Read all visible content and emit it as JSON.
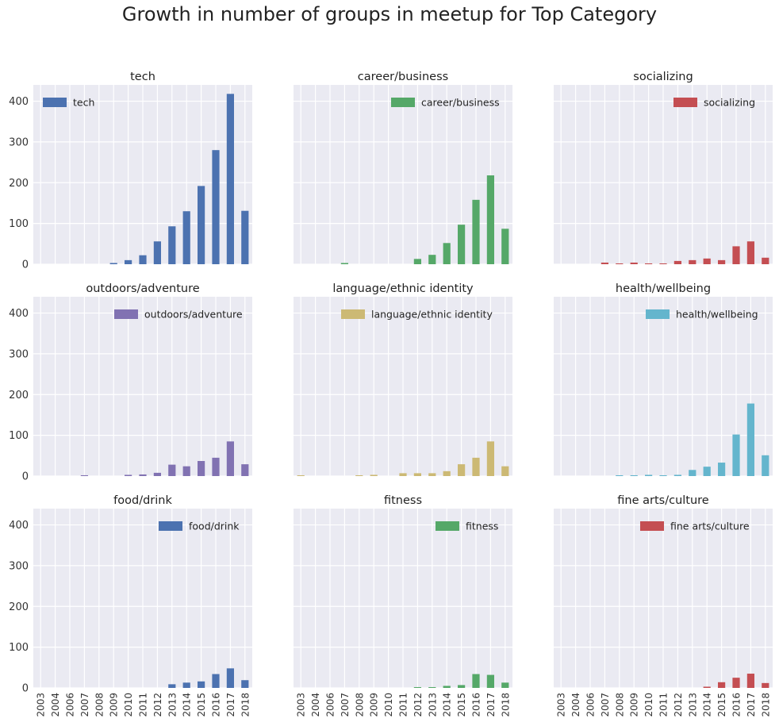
{
  "figure": {
    "title": "Growth in number of groups in meetup for Top Category"
  },
  "colors": {
    "panel_background": "#EAEAF2",
    "grid": "#FFFFFF",
    "tick_label": "#333333"
  },
  "chart_data": [
    {
      "type": "bar",
      "title": "tech",
      "color": "#4C72B0",
      "legend": "top-left",
      "categories": [
        "2003",
        "2004",
        "2006",
        "2007",
        "2008",
        "2009",
        "2010",
        "2011",
        "2012",
        "2013",
        "2014",
        "2015",
        "2016",
        "2017",
        "2018"
      ],
      "series": [
        {
          "name": "tech",
          "values": [
            0,
            0,
            0,
            0,
            0,
            3,
            10,
            22,
            56,
            93,
            130,
            192,
            280,
            418,
            131
          ]
        }
      ],
      "yticks": [
        0,
        100,
        200,
        300,
        400
      ],
      "ylim": [
        0,
        440
      ],
      "grid": true
    },
    {
      "type": "bar",
      "title": "career/business",
      "color": "#55A868",
      "legend": "top-right",
      "categories": [
        "2003",
        "2004",
        "2006",
        "2007",
        "2008",
        "2009",
        "2010",
        "2011",
        "2012",
        "2013",
        "2014",
        "2015",
        "2016",
        "2017",
        "2018"
      ],
      "series": [
        {
          "name": "career/business",
          "values": [
            0,
            0,
            0,
            3,
            0,
            0,
            0,
            0,
            13,
            23,
            52,
            97,
            158,
            218,
            87
          ]
        }
      ],
      "yticks": [
        0,
        100,
        200,
        300,
        400
      ],
      "ylim": [
        0,
        440
      ],
      "grid": true
    },
    {
      "type": "bar",
      "title": "socializing",
      "color": "#C44E52",
      "legend": "top-right",
      "categories": [
        "2003",
        "2004",
        "2006",
        "2007",
        "2008",
        "2009",
        "2010",
        "2011",
        "2012",
        "2013",
        "2014",
        "2015",
        "2016",
        "2017",
        "2018"
      ],
      "series": [
        {
          "name": "socializing",
          "values": [
            0,
            0,
            0,
            4,
            2,
            4,
            2,
            2,
            8,
            10,
            14,
            10,
            44,
            56,
            16
          ]
        }
      ],
      "yticks": [
        0,
        100,
        200,
        300,
        400
      ],
      "ylim": [
        0,
        440
      ],
      "grid": true
    },
    {
      "type": "bar",
      "title": "outdoors/adventure",
      "color": "#8172B2",
      "legend": "top-right",
      "categories": [
        "2003",
        "2004",
        "2006",
        "2007",
        "2008",
        "2009",
        "2010",
        "2011",
        "2012",
        "2013",
        "2014",
        "2015",
        "2016",
        "2017",
        "2018"
      ],
      "series": [
        {
          "name": "outdoors/adventure",
          "values": [
            0,
            0,
            0,
            2,
            0,
            0,
            3,
            4,
            8,
            28,
            24,
            37,
            45,
            85,
            29
          ]
        }
      ],
      "yticks": [
        0,
        100,
        200,
        300,
        400
      ],
      "ylim": [
        0,
        440
      ],
      "grid": true
    },
    {
      "type": "bar",
      "title": "language/ethnic identity",
      "color": "#CCB974",
      "legend": "top-right",
      "categories": [
        "2003",
        "2004",
        "2006",
        "2007",
        "2008",
        "2009",
        "2010",
        "2011",
        "2012",
        "2013",
        "2014",
        "2015",
        "2016",
        "2017",
        "2018"
      ],
      "series": [
        {
          "name": "language/ethnic identity",
          "values": [
            2,
            0,
            0,
            0,
            2,
            3,
            0,
            7,
            7,
            7,
            12,
            29,
            45,
            85,
            24
          ]
        }
      ],
      "yticks": [
        0,
        100,
        200,
        300,
        400
      ],
      "ylim": [
        0,
        440
      ],
      "grid": true
    },
    {
      "type": "bar",
      "title": "health/wellbeing",
      "color": "#64B5CD",
      "legend": "top-right",
      "categories": [
        "2003",
        "2004",
        "2006",
        "2007",
        "2008",
        "2009",
        "2010",
        "2011",
        "2012",
        "2013",
        "2014",
        "2015",
        "2016",
        "2017",
        "2018"
      ],
      "series": [
        {
          "name": "health/wellbeing",
          "values": [
            0,
            0,
            0,
            0,
            2,
            2,
            3,
            2,
            3,
            15,
            23,
            33,
            102,
            178,
            51
          ]
        }
      ],
      "yticks": [
        0,
        100,
        200,
        300,
        400
      ],
      "ylim": [
        0,
        440
      ],
      "grid": true
    },
    {
      "type": "bar",
      "title": "food/drink",
      "color": "#4C72B0",
      "legend": "top-right",
      "categories": [
        "2003",
        "2004",
        "2006",
        "2007",
        "2008",
        "2009",
        "2010",
        "2011",
        "2012",
        "2013",
        "2014",
        "2015",
        "2016",
        "2017",
        "2018"
      ],
      "series": [
        {
          "name": "food/drink",
          "values": [
            0,
            0,
            0,
            0,
            0,
            0,
            0,
            0,
            0,
            9,
            13,
            16,
            34,
            48,
            19
          ]
        }
      ],
      "yticks": [
        0,
        100,
        200,
        300,
        400
      ],
      "ylim": [
        0,
        440
      ],
      "grid": true
    },
    {
      "type": "bar",
      "title": "fitness",
      "color": "#55A868",
      "legend": "top-right",
      "categories": [
        "2003",
        "2004",
        "2006",
        "2007",
        "2008",
        "2009",
        "2010",
        "2011",
        "2012",
        "2013",
        "2014",
        "2015",
        "2016",
        "2017",
        "2018"
      ],
      "series": [
        {
          "name": "fitness",
          "values": [
            0,
            0,
            0,
            0,
            0,
            0,
            0,
            0,
            2,
            2,
            5,
            7,
            34,
            32,
            13
          ]
        }
      ],
      "yticks": [
        0,
        100,
        200,
        300,
        400
      ],
      "ylim": [
        0,
        440
      ],
      "grid": true
    },
    {
      "type": "bar",
      "title": "fine arts/culture",
      "color": "#C44E52",
      "legend": "top-right",
      "categories": [
        "2003",
        "2004",
        "2006",
        "2007",
        "2008",
        "2009",
        "2010",
        "2011",
        "2012",
        "2013",
        "2014",
        "2015",
        "2016",
        "2017",
        "2018"
      ],
      "series": [
        {
          "name": "fine arts/culture",
          "values": [
            0,
            0,
            0,
            0,
            0,
            0,
            0,
            0,
            0,
            0,
            3,
            14,
            25,
            35,
            12
          ]
        }
      ],
      "yticks": [
        0,
        100,
        200,
        300,
        400
      ],
      "ylim": [
        0,
        440
      ],
      "grid": true
    }
  ]
}
